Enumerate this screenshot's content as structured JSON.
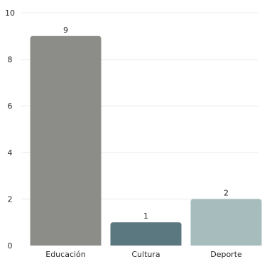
{
  "chart_data": {
    "type": "bar",
    "categories": [
      "Educación",
      "Cultura",
      "Deporte"
    ],
    "values": [
      9,
      1,
      2
    ],
    "data_labels": [
      "9",
      "1",
      "2"
    ],
    "colors": [
      "#8c8c88",
      "#5b7780",
      "#a7bcbc"
    ],
    "title": "",
    "xlabel": "",
    "ylabel": "",
    "ylim": [
      0,
      10
    ],
    "yticks": [
      0,
      2,
      4,
      6,
      8,
      10
    ],
    "grid": true,
    "legend": "none"
  }
}
